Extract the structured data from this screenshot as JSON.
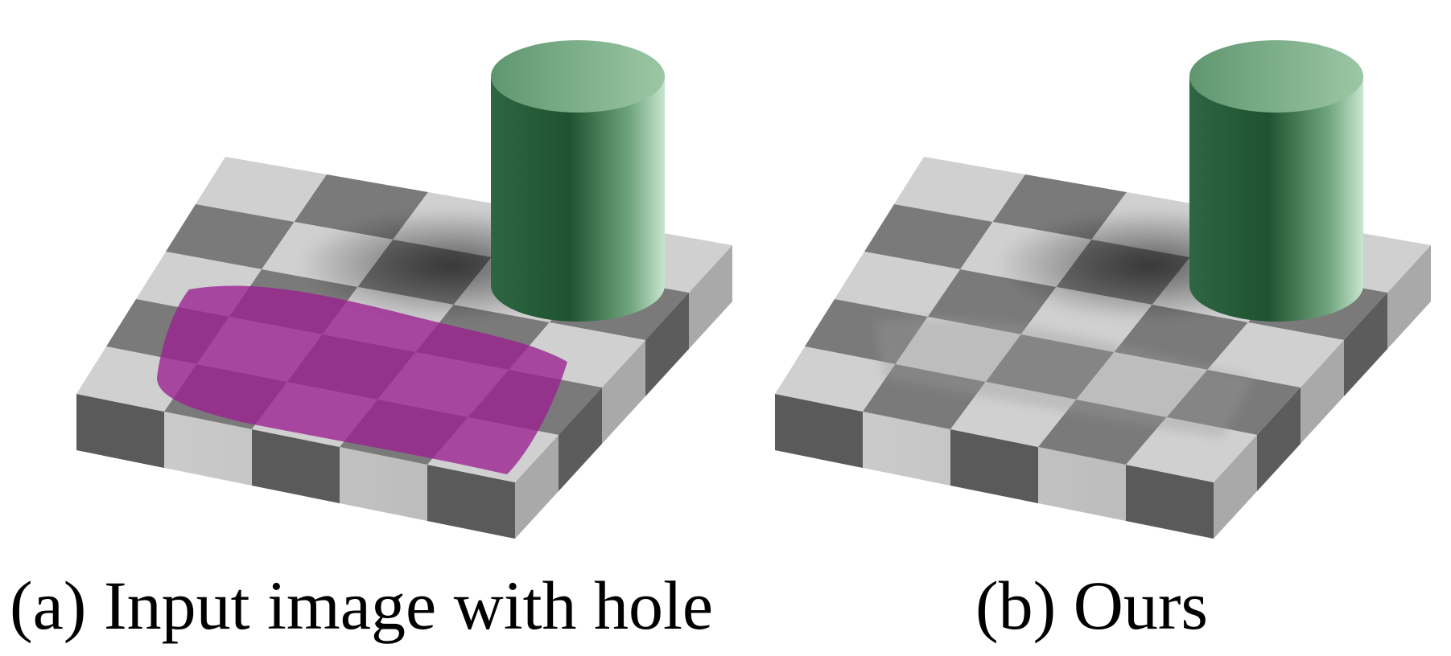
{
  "captions": {
    "a": "(a) Input image with hole",
    "b": "(b) Ours"
  },
  "colors": {
    "light_square": "#d0d0d0",
    "dark_square": "#7a7a7a",
    "hole_mask": "#9b1f8f",
    "cylinder": "#2f6b45"
  }
}
